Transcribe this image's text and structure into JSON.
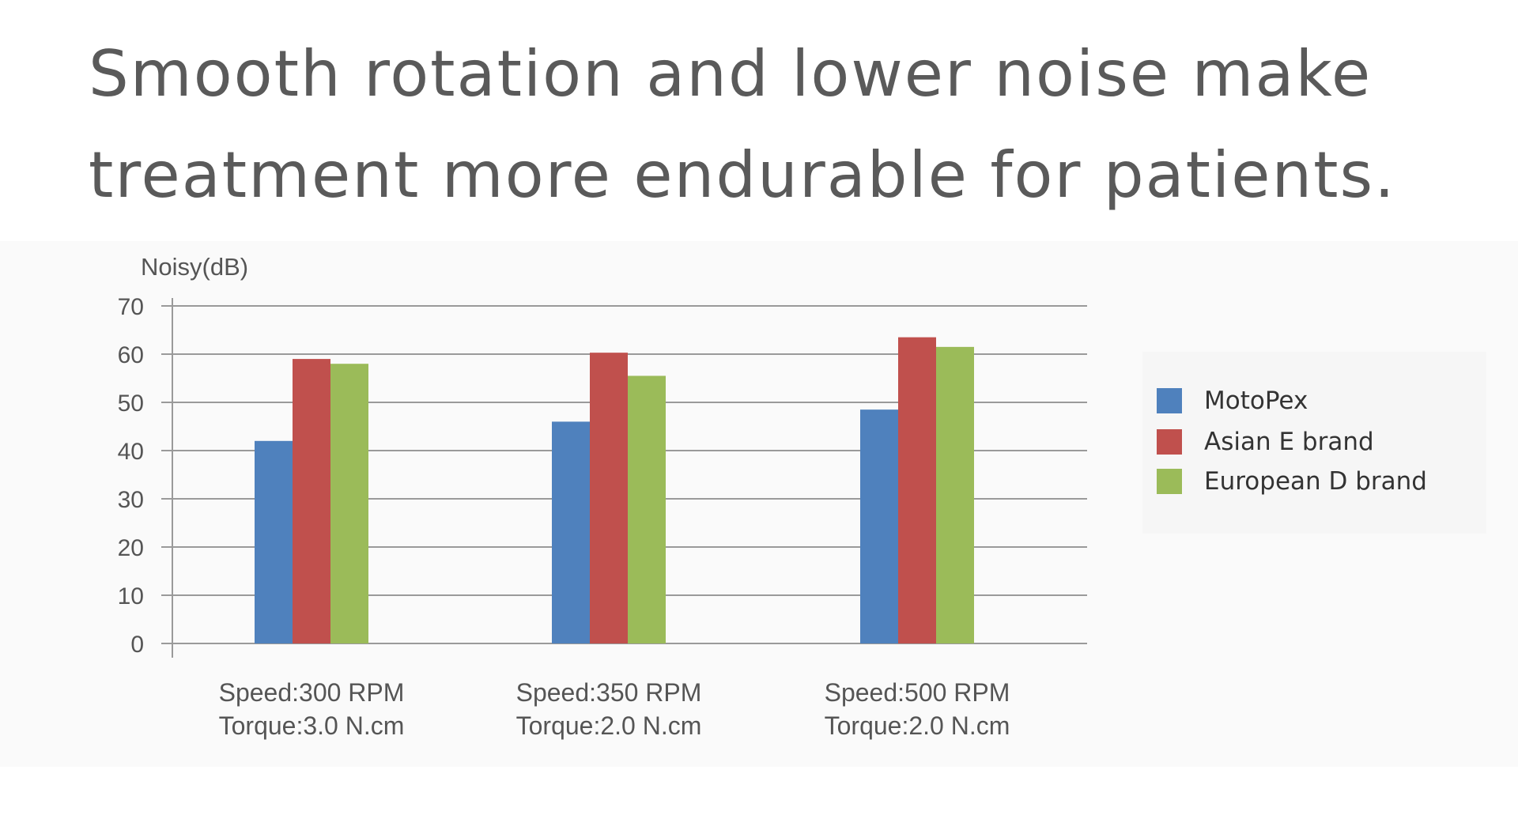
{
  "headline": {
    "line1": "Smooth rotation and lower noise make",
    "line2": "treatment more endurable for patients."
  },
  "chart_data": {
    "type": "bar",
    "title": "",
    "ylabel": "Noisy(dB)",
    "xlabel": "",
    "ylim": [
      0,
      70
    ],
    "yticks": [
      0,
      10,
      20,
      30,
      40,
      50,
      60,
      70
    ],
    "grid": true,
    "legend_position": "right",
    "categories": [
      {
        "line1": "Speed:300 RPM",
        "line2": "Torque:3.0 N.cm"
      },
      {
        "line1": "Speed:350 RPM",
        "line2": "Torque:2.0 N.cm"
      },
      {
        "line1": "Speed:500 RPM",
        "line2": "Torque:2.0 N.cm"
      }
    ],
    "series": [
      {
        "name": "MotoPex",
        "color": "#4f81bd",
        "values": [
          42,
          46,
          48.5
        ]
      },
      {
        "name": "Asian E brand",
        "color": "#c0504d",
        "values": [
          59,
          60.3,
          63.5
        ]
      },
      {
        "name": "European D brand",
        "color": "#9bbb59",
        "values": [
          58,
          55.5,
          61.5
        ]
      }
    ]
  }
}
